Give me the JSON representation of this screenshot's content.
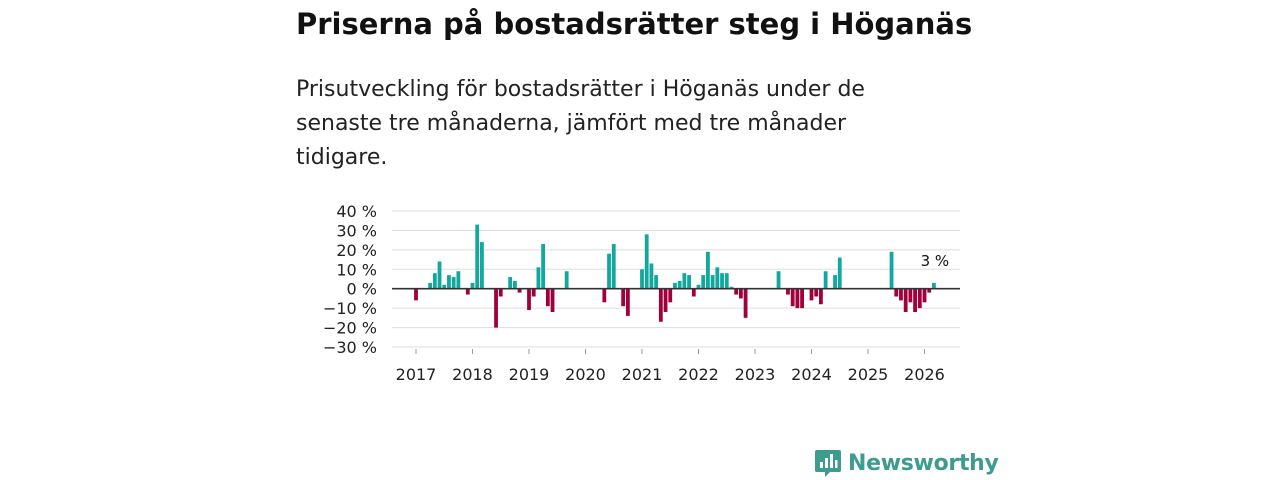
{
  "title": "Priserna på bostadsrätter steg i Höganäs",
  "subtitle": "Prisutveckling för bostadsrätter i Höganäs under de senaste tre månaderna, jämfört med tre månader tidigare.",
  "brand": {
    "name": "Newsworthy",
    "icon": "bar-chart-icon",
    "color": "#3d9b8f"
  },
  "colors": {
    "positive": "#13a89e",
    "negative": "#a1003c",
    "grid": "#dddddd",
    "zero": "#333333"
  },
  "chart_data": {
    "type": "bar",
    "ylim": [
      -30,
      40
    ],
    "yticks": [
      40,
      30,
      20,
      10,
      0,
      -10,
      -20,
      -30
    ],
    "ytick_labels": [
      "40 %",
      "30 %",
      "20 %",
      "10 %",
      "0 %",
      "−10 %",
      "−20 %",
      "−30 %"
    ],
    "xtick_labels": [
      "2017",
      "2018",
      "2019",
      "2020",
      "2021",
      "2022",
      "2023",
      "2024",
      "2025",
      "2026"
    ],
    "start": "2017-01",
    "annotation": {
      "text": "3 %",
      "target": "last"
    },
    "values": [
      -6,
      null,
      null,
      3,
      8,
      14,
      2,
      7,
      6,
      9,
      null,
      -3,
      3,
      33,
      24,
      null,
      null,
      -20,
      -4,
      null,
      6,
      4,
      -2,
      null,
      -11,
      -4,
      11,
      23,
      -9,
      -12,
      null,
      null,
      9,
      null,
      null,
      null,
      null,
      null,
      null,
      null,
      -7,
      18,
      23,
      null,
      -9,
      -14,
      null,
      null,
      10,
      28,
      13,
      7,
      -17,
      -12,
      -7,
      3,
      4,
      8,
      7,
      -4,
      2,
      7,
      19,
      7,
      11,
      8,
      8,
      1,
      -3,
      -5,
      -15,
      null,
      null,
      null,
      null,
      null,
      null,
      9,
      null,
      -3,
      -9,
      -10,
      -10,
      null,
      -6,
      -4,
      -8,
      9,
      null,
      7,
      16,
      null,
      null,
      null,
      null,
      null,
      null,
      null,
      null,
      null,
      null,
      19,
      -4,
      -6,
      -12,
      -7,
      -12,
      -10,
      -7,
      -2,
      3
    ]
  }
}
